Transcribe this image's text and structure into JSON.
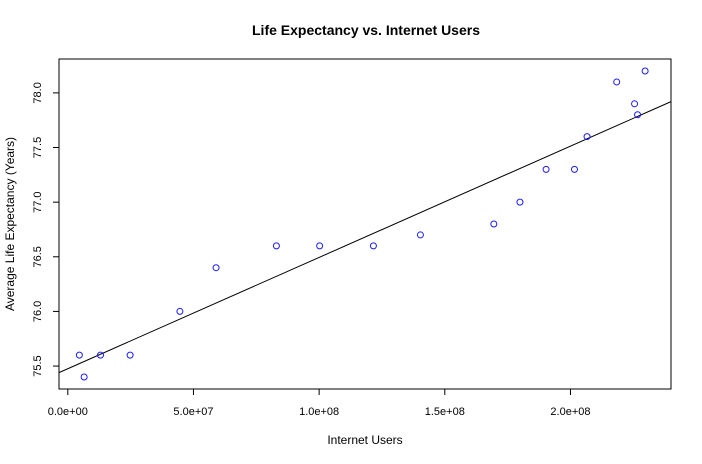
{
  "chart_data": {
    "type": "scatter",
    "title": "Life Expectancy vs. Internet Users",
    "xlabel": "Internet Users",
    "ylabel": "Average Life Expectancy (Years)",
    "xlim": [
      -3500000,
      240000000
    ],
    "ylim": [
      75.29,
      78.31
    ],
    "grid": false,
    "x_ticks": [
      {
        "value": 0,
        "label": "0.0e+00"
      },
      {
        "value": 50000000,
        "label": "5.0e+07"
      },
      {
        "value": 100000000,
        "label": "1.0e+08"
      },
      {
        "value": 150000000,
        "label": "1.5e+08"
      },
      {
        "value": 200000000,
        "label": "2.0e+08"
      }
    ],
    "y_ticks": [
      {
        "value": 75.5,
        "label": "75.5"
      },
      {
        "value": 76.0,
        "label": "76.0"
      },
      {
        "value": 76.5,
        "label": "76.5"
      },
      {
        "value": 77.0,
        "label": "77.0"
      },
      {
        "value": 77.5,
        "label": "77.5"
      },
      {
        "value": 78.0,
        "label": "78.0"
      }
    ],
    "points": [
      {
        "x": 4600000,
        "y": 75.6
      },
      {
        "x": 6500000,
        "y": 75.4
      },
      {
        "x": 13000000,
        "y": 75.6
      },
      {
        "x": 24800000,
        "y": 75.6
      },
      {
        "x": 44600000,
        "y": 76.0
      },
      {
        "x": 59000000,
        "y": 76.4
      },
      {
        "x": 83000000,
        "y": 76.6
      },
      {
        "x": 100200000,
        "y": 76.6
      },
      {
        "x": 121600000,
        "y": 76.6
      },
      {
        "x": 140300000,
        "y": 76.7
      },
      {
        "x": 169500000,
        "y": 76.8
      },
      {
        "x": 179900000,
        "y": 77.0
      },
      {
        "x": 190300000,
        "y": 77.3
      },
      {
        "x": 201600000,
        "y": 77.3
      },
      {
        "x": 206600000,
        "y": 77.6
      },
      {
        "x": 218400000,
        "y": 78.1
      },
      {
        "x": 225500000,
        "y": 77.9
      },
      {
        "x": 226700000,
        "y": 77.8
      },
      {
        "x": 229700000,
        "y": 78.2
      }
    ],
    "regression_line": {
      "x": [
        -3500000,
        240000000
      ],
      "y": [
        75.44,
        77.92
      ]
    },
    "colors": {
      "points": "#1a1aff",
      "line": "#000000"
    }
  }
}
